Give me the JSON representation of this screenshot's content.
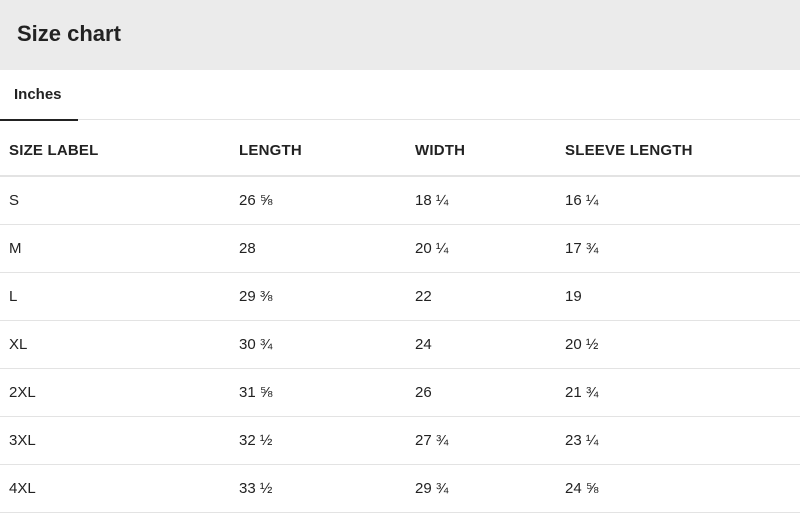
{
  "header": {
    "title": "Size chart"
  },
  "tabs": [
    {
      "label": "Inches",
      "active": true
    }
  ],
  "table": {
    "columns": [
      "SIZE LABEL",
      "LENGTH",
      "WIDTH",
      "SLEEVE LENGTH"
    ],
    "rows": [
      [
        "S",
        "26 ⅝",
        "18 ¼",
        "16 ¼"
      ],
      [
        "M",
        "28",
        "20 ¼",
        "17 ¾"
      ],
      [
        "L",
        "29 ⅜",
        "22",
        "19"
      ],
      [
        "XL",
        "30 ¾",
        "24",
        "20 ½"
      ],
      [
        "2XL",
        "31 ⅝",
        "26",
        "21 ¾"
      ],
      [
        "3XL",
        "32 ½",
        "27 ¾",
        "23 ¼"
      ],
      [
        "4XL",
        "33 ½",
        "29 ¾",
        "24 ⅝"
      ]
    ]
  },
  "colors": {
    "header_bg": "#ebebeb",
    "text": "#222222",
    "divider": "#e3e3e3",
    "tab_underline": "#222222"
  }
}
